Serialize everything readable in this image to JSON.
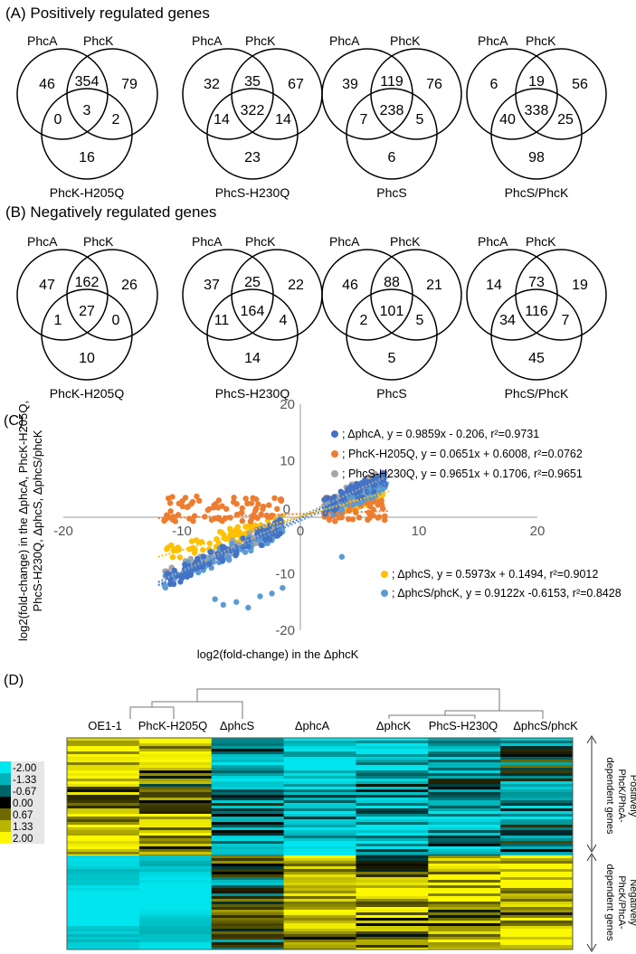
{
  "panel_a": {
    "title": "(A) Positively regulated genes",
    "diagrams": [
      {
        "label_left": "PhcA",
        "label_right": "PhcK",
        "label_bottom": "PhcK-H205Q",
        "values": {
          "a_only": "46",
          "ab": "354",
          "b_only": "79",
          "abc": "3",
          "ac": "0",
          "bc": "2",
          "c_only": "16"
        }
      },
      {
        "label_left": "PhcA",
        "label_right": "PhcK",
        "label_bottom": "PhcS-H230Q",
        "values": {
          "a_only": "32",
          "ab": "35",
          "b_only": "67",
          "abc": "322",
          "ac": "14",
          "bc": "14",
          "c_only": "23"
        }
      },
      {
        "label_left": "PhcA",
        "label_right": "PhcK",
        "label_bottom": "PhcS",
        "values": {
          "a_only": "39",
          "ab": "119",
          "b_only": "76",
          "abc": "238",
          "ac": "7",
          "bc": "5",
          "c_only": "6"
        }
      },
      {
        "label_left": "PhcA",
        "label_right": "PhcK",
        "label_bottom": "PhcS/PhcK",
        "values": {
          "a_only": "6",
          "ab": "19",
          "b_only": "56",
          "abc": "338",
          "ac": "40",
          "bc": "25",
          "c_only": "98"
        }
      }
    ]
  },
  "panel_b": {
    "title": "(B) Negatively regulated genes",
    "diagrams": [
      {
        "label_left": "PhcA",
        "label_right": "PhcK",
        "label_bottom": "PhcK-H205Q",
        "values": {
          "a_only": "47",
          "ab": "162",
          "b_only": "26",
          "abc": "27",
          "ac": "1",
          "bc": "0",
          "c_only": "10"
        }
      },
      {
        "label_left": "PhcA",
        "label_right": "PhcK",
        "label_bottom": "PhcS-H230Q",
        "values": {
          "a_only": "37",
          "ab": "25",
          "b_only": "22",
          "abc": "164",
          "ac": "11",
          "bc": "4",
          "c_only": "14"
        }
      },
      {
        "label_left": "PhcA",
        "label_right": "PhcK",
        "label_bottom": "PhcS",
        "values": {
          "a_only": "46",
          "ab": "88",
          "b_only": "21",
          "abc": "101",
          "ac": "2",
          "bc": "5",
          "c_only": "5"
        }
      },
      {
        "label_left": "PhcA",
        "label_right": "PhcK",
        "label_bottom": "PhcS/PhcK",
        "values": {
          "a_only": "14",
          "ab": "73",
          "b_only": "19",
          "abc": "116",
          "ac": "34",
          "bc": "7",
          "c_only": "45"
        }
      }
    ]
  },
  "chart_data": [
    {
      "type": "scatter",
      "panel_label": "(C)",
      "xlabel": "log2(fold-change) in the ΔphcK",
      "ylabel_line1": "log2(fold-change) in the ΔphcA, PhcK-H205Q,",
      "ylabel_line2": "PhcS-H230Q, ΔphcS, ΔphcS/phcK",
      "xlim": [
        -20,
        20
      ],
      "ylim": [
        -20,
        20
      ],
      "x_ticks": [
        -20,
        -10,
        0,
        10,
        20
      ],
      "y_ticks": [
        -20,
        -10,
        0,
        10,
        20
      ],
      "series": [
        {
          "name": "ΔphcA",
          "color": "#4472c4",
          "slope": 0.9859,
          "intercept": -0.206,
          "r2": 0.9731,
          "legend": "; ΔphcA, y = 0.9859x -  0.206, r²=0.9731"
        },
        {
          "name": "PhcK-H205Q",
          "color": "#ed7d31",
          "slope": 0.0651,
          "intercept": 0.6008,
          "r2": 0.0762,
          "legend": "; PhcK-H205Q, y = 0.0651x +  0.6008, r²=0.0762"
        },
        {
          "name": "PhcS-H230Q",
          "color": "#a5a5a5",
          "slope": 0.9651,
          "intercept": 0.1706,
          "r2": 0.9651,
          "legend": "; PhcS-H230Q, y = 0.9651x +  0.1706, r²=0.9651"
        },
        {
          "name": "ΔphcS",
          "color": "#ffc000",
          "slope": 0.5973,
          "intercept": 0.1494,
          "r2": 0.9012,
          "legend": "; ΔphcS, y = 0.5973x + 0.1494, r²=0.9012"
        },
        {
          "name": "ΔphcS/phcK",
          "color": "#5b9bd5",
          "slope": 0.9122,
          "intercept": -0.6153,
          "r2": 0.8428,
          "legend": "; ΔphcS/phcK, y = 0.9122x -0.6153, r²=0.8428"
        }
      ]
    },
    {
      "type": "heatmap",
      "panel_label": "(D)",
      "columns": [
        "OE1-1",
        "PhcK-H205Q",
        "ΔphcS",
        "ΔphcA",
        "ΔphcK",
        "PhcS-H230Q",
        "ΔphcS/phcK"
      ],
      "color_scale": [
        {
          "value": "-2.00",
          "color": "#00e5ee"
        },
        {
          "value": "-1.33",
          "color": "#00b3b8"
        },
        {
          "value": "-0.67",
          "color": "#006466"
        },
        {
          "value": "0.00",
          "color": "#000000"
        },
        {
          "value": "0.67",
          "color": "#6e6a00"
        },
        {
          "value": "1.33",
          "color": "#b9b400"
        },
        {
          "value": "2.00",
          "color": "#fbf800"
        }
      ],
      "row_groups": [
        {
          "label_line1": "Positively",
          "label_line2": "PhcK/PhcA-",
          "label_line3": "dependent genes",
          "column_means": [
            1.4,
            1.1,
            -1.0,
            -1.5,
            -1.3,
            -1.3,
            -0.8
          ]
        },
        {
          "label_line1": "Negatively",
          "label_line2": "PhcK/PhcA-",
          "label_line3": "dependent genes",
          "column_means": [
            -2.0,
            -1.9,
            0.0,
            1.3,
            1.1,
            1.2,
            1.6
          ]
        }
      ]
    }
  ]
}
